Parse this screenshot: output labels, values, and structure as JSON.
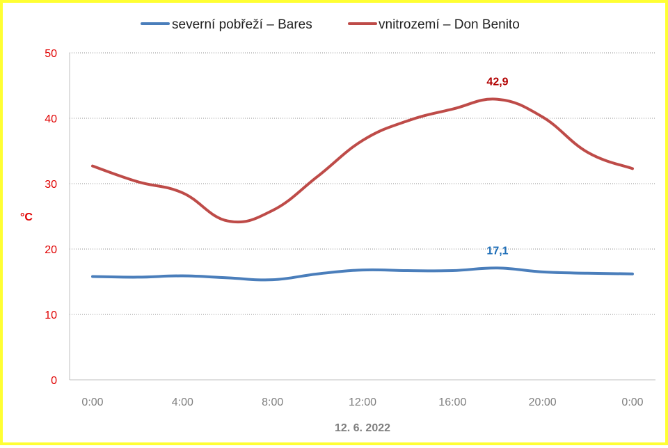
{
  "chart_data": {
    "type": "line",
    "x": [
      "0:00",
      "2:00",
      "4:00",
      "6:00",
      "8:00",
      "10:00",
      "12:00",
      "14:00",
      "16:00",
      "18:00",
      "20:00",
      "22:00",
      "0:00"
    ],
    "tick_labels": [
      "0:00",
      "4:00",
      "8:00",
      "12:00",
      "16:00",
      "20:00",
      "0:00"
    ],
    "xlabel": "12. 6. 2022",
    "ylabel": "°C",
    "ylim": [
      0,
      50
    ],
    "yticks": [
      0,
      10,
      20,
      30,
      40,
      50
    ],
    "grid": true,
    "legend_position": "top",
    "series": [
      {
        "name": "severní pobřeží – Bares",
        "color": "#4a7ebb",
        "values": [
          15.8,
          15.7,
          15.9,
          15.6,
          15.3,
          16.2,
          16.8,
          16.7,
          16.7,
          17.1,
          16.5,
          16.3,
          16.2
        ],
        "label_index": 9,
        "label": "17,1"
      },
      {
        "name": "vnitrozemí – Don Benito",
        "color": "#be4b48",
        "values": [
          32.7,
          30.3,
          28.6,
          24.3,
          25.9,
          31.1,
          36.6,
          39.6,
          41.4,
          42.9,
          40.2,
          34.8,
          32.3
        ],
        "label_index": 9,
        "label": "42,9"
      }
    ]
  }
}
